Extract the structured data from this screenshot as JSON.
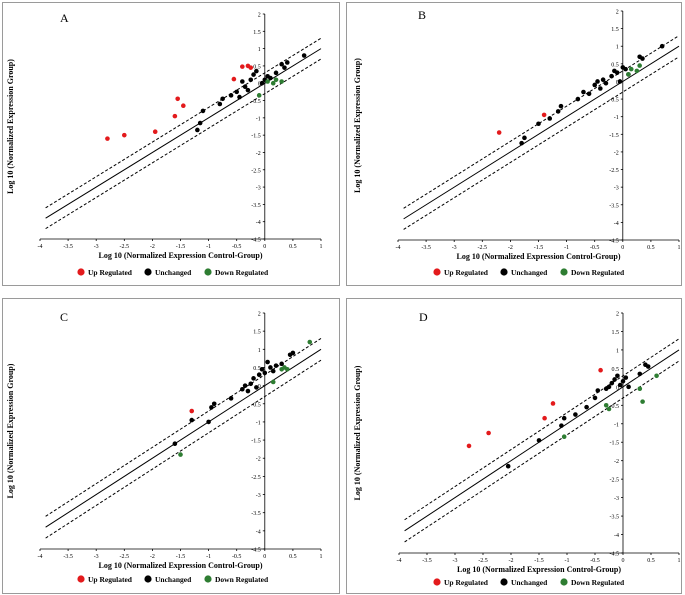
{
  "chart_data": [
    {
      "type": "scatter",
      "panel_label": "A",
      "xlabel": "Log 10 (Normalized Expression Control-Group)",
      "ylabel": "Log 10 (Normalized Expression Group)",
      "xlim": [
        -4,
        1
      ],
      "ylim": [
        -4.5,
        2
      ],
      "x_ticks": [
        "-4",
        "-3.5",
        "-3",
        "-2.5",
        "-2",
        "-1.5",
        "-1",
        "-0.5",
        "0",
        "0.5",
        "1"
      ],
      "y_ticks": [
        "2",
        "1.5",
        "1",
        "0.5",
        "0",
        "-0.5",
        "-1",
        "-1.5",
        "-2",
        "-2.5",
        "-3",
        "-3.5",
        "-4",
        "-4.5"
      ],
      "lines": [
        "y=x",
        "y=x+0.3",
        "y=x-0.3"
      ],
      "legend": [
        "Up Regulated",
        "Unchanged",
        "Down Regulated"
      ],
      "colors": {
        "up": "#e31a1c",
        "unchanged": "#000000",
        "down": "#2e7d32"
      },
      "series": [
        {
          "name": "Up Regulated",
          "points": [
            [
              -2.8,
              -1.6
            ],
            [
              -2.5,
              -1.5
            ],
            [
              -1.95,
              -1.4
            ],
            [
              -1.6,
              -0.95
            ],
            [
              -1.55,
              -0.45
            ],
            [
              -1.45,
              -0.65
            ],
            [
              -0.55,
              0.12
            ],
            [
              -0.4,
              0.48
            ],
            [
              -0.3,
              0.5
            ],
            [
              -0.25,
              0.45
            ]
          ]
        },
        {
          "name": "Unchanged",
          "points": [
            [
              -1.2,
              -1.35
            ],
            [
              -1.15,
              -1.15
            ],
            [
              -1.1,
              -0.8
            ],
            [
              -0.8,
              -0.6
            ],
            [
              -0.75,
              -0.45
            ],
            [
              -0.6,
              -0.35
            ],
            [
              -0.5,
              -0.25
            ],
            [
              -0.45,
              -0.4
            ],
            [
              -0.4,
              0.05
            ],
            [
              -0.35,
              -0.1
            ],
            [
              -0.3,
              -0.2
            ],
            [
              -0.25,
              0.1
            ],
            [
              -0.2,
              0.25
            ],
            [
              -0.15,
              0.35
            ],
            [
              -0.05,
              0.0
            ],
            [
              0.0,
              0.1
            ],
            [
              0.05,
              0.2
            ],
            [
              0.1,
              0.15
            ],
            [
              0.2,
              0.3
            ],
            [
              0.3,
              0.55
            ],
            [
              0.35,
              0.45
            ],
            [
              0.4,
              0.6
            ],
            [
              0.7,
              0.8
            ]
          ]
        },
        {
          "name": "Down Regulated",
          "points": [
            [
              -0.1,
              -0.35
            ],
            [
              0.05,
              0.05
            ],
            [
              0.15,
              0.0
            ],
            [
              0.2,
              0.1
            ],
            [
              0.3,
              0.05
            ]
          ]
        }
      ]
    },
    {
      "type": "scatter",
      "panel_label": "B",
      "xlabel": "Log 10 (Normalized Expression Control-Group)",
      "ylabel": "Log 10 (Normalized Expression Group)",
      "xlim": [
        -4,
        1
      ],
      "ylim": [
        -4.5,
        2
      ],
      "x_ticks": [
        "-4",
        "-3.5",
        "-3",
        "-2.5",
        "-2",
        "-1.5",
        "-1",
        "-0.5",
        "0",
        "0.5",
        "1"
      ],
      "y_ticks": [
        "2",
        "1.5",
        "1",
        "0.5",
        "0",
        "-0.5",
        "-1",
        "-1.5",
        "-2",
        "-2.5",
        "-3",
        "-3.5",
        "-4",
        "-4.5"
      ],
      "lines": [
        "y=x",
        "y=x+0.3",
        "y=x-0.3"
      ],
      "legend": [
        "Up Regulated",
        "Unchanged",
        "Down Regulated"
      ],
      "colors": {
        "up": "#e31a1c",
        "unchanged": "#000000",
        "down": "#2e7d32"
      },
      "series": [
        {
          "name": "Up Regulated",
          "points": [
            [
              -2.2,
              -1.45
            ],
            [
              -1.4,
              -0.95
            ]
          ]
        },
        {
          "name": "Unchanged",
          "points": [
            [
              -1.8,
              -1.75
            ],
            [
              -1.75,
              -1.6
            ],
            [
              -1.5,
              -1.2
            ],
            [
              -1.3,
              -1.05
            ],
            [
              -1.15,
              -0.85
            ],
            [
              -1.1,
              -0.7
            ],
            [
              -0.8,
              -0.5
            ],
            [
              -0.7,
              -0.3
            ],
            [
              -0.6,
              -0.35
            ],
            [
              -0.5,
              -0.1
            ],
            [
              -0.45,
              0.0
            ],
            [
              -0.4,
              -0.2
            ],
            [
              -0.35,
              0.05
            ],
            [
              -0.3,
              -0.05
            ],
            [
              -0.2,
              0.15
            ],
            [
              -0.15,
              0.3
            ],
            [
              -0.1,
              0.25
            ],
            [
              -0.05,
              0.0
            ],
            [
              0.0,
              0.4
            ],
            [
              0.05,
              0.35
            ],
            [
              0.1,
              0.2
            ],
            [
              0.3,
              0.7
            ],
            [
              0.35,
              0.65
            ],
            [
              0.7,
              1.0
            ]
          ]
        },
        {
          "name": "Down Regulated",
          "points": [
            [
              0.1,
              0.2
            ],
            [
              0.15,
              0.35
            ],
            [
              0.25,
              0.3
            ],
            [
              0.3,
              0.45
            ]
          ]
        }
      ]
    },
    {
      "type": "scatter",
      "panel_label": "C",
      "xlabel": "Log 10 (Normalized Expression Control-Group)",
      "ylabel": "Log 10 (Normalized Expression Group)",
      "xlim": [
        -4,
        1
      ],
      "ylim": [
        -4.5,
        2
      ],
      "x_ticks": [
        "-4",
        "-3.5",
        "-3",
        "-2.5",
        "-2",
        "-1.5",
        "-1",
        "-0.5",
        "0",
        "0.5",
        "1"
      ],
      "y_ticks": [
        "2",
        "1.5",
        "1",
        "0.5",
        "0",
        "-0.5",
        "-1",
        "-1.5",
        "-2",
        "-2.5",
        "-3",
        "-3.5",
        "-4",
        "-4.5"
      ],
      "lines": [
        "y=x",
        "y=x+0.3",
        "y=x-0.3"
      ],
      "legend": [
        "Up Regulated",
        "Unchanged",
        "Down Regulated"
      ],
      "colors": {
        "up": "#e31a1c",
        "unchanged": "#000000",
        "down": "#2e7d32"
      },
      "series": [
        {
          "name": "Up Regulated",
          "points": [
            [
              -1.3,
              -0.7
            ]
          ]
        },
        {
          "name": "Unchanged",
          "points": [
            [
              -1.6,
              -1.6
            ],
            [
              -1.3,
              -0.95
            ],
            [
              -1.0,
              -1.0
            ],
            [
              -0.95,
              -0.6
            ],
            [
              -0.9,
              -0.5
            ],
            [
              -0.6,
              -0.35
            ],
            [
              -0.4,
              -0.1
            ],
            [
              -0.35,
              0.0
            ],
            [
              -0.3,
              -0.15
            ],
            [
              -0.25,
              0.05
            ],
            [
              -0.2,
              0.2
            ],
            [
              -0.15,
              -0.05
            ],
            [
              -0.1,
              0.3
            ],
            [
              -0.05,
              0.45
            ],
            [
              0.0,
              0.35
            ],
            [
              0.05,
              0.65
            ],
            [
              0.1,
              0.5
            ],
            [
              0.15,
              0.4
            ],
            [
              0.2,
              0.55
            ],
            [
              0.3,
              0.6
            ],
            [
              0.45,
              0.85
            ],
            [
              0.5,
              0.9
            ]
          ]
        },
        {
          "name": "Down Regulated",
          "points": [
            [
              -1.5,
              -1.9
            ],
            [
              0.15,
              0.1
            ],
            [
              0.3,
              0.45
            ],
            [
              0.35,
              0.5
            ],
            [
              0.4,
              0.45
            ],
            [
              0.8,
              1.2
            ]
          ]
        }
      ]
    },
    {
      "type": "scatter",
      "panel_label": "D",
      "xlabel": "Log 10 (Normalized Expression Control-Group)",
      "ylabel": "Log 10 (Normalized Expression Group)",
      "xlim": [
        -4,
        1
      ],
      "ylim": [
        -4.5,
        2
      ],
      "x_ticks": [
        "-4",
        "-3.5",
        "-3",
        "-2.5",
        "-2",
        "-1.5",
        "-1",
        "-0.5",
        "0",
        "0.5",
        "1"
      ],
      "y_ticks": [
        "2",
        "1.5",
        "1",
        "0.5",
        "0",
        "-0.5",
        "-1",
        "-1.5",
        "-2",
        "-2.5",
        "-3",
        "-3.5",
        "-4",
        "-4.5"
      ],
      "lines": [
        "y=x",
        "y=x+0.3",
        "y=x-0.3"
      ],
      "legend": [
        "Up Regulated",
        "Unchanged",
        "Down Regulated"
      ],
      "colors": {
        "up": "#e31a1c",
        "unchanged": "#000000",
        "down": "#2e7d32"
      },
      "series": [
        {
          "name": "Up Regulated",
          "points": [
            [
              -2.75,
              -1.6
            ],
            [
              -2.4,
              -1.25
            ],
            [
              -1.4,
              -0.85
            ],
            [
              -1.25,
              -0.45
            ],
            [
              -0.4,
              0.45
            ]
          ]
        },
        {
          "name": "Unchanged",
          "points": [
            [
              -2.05,
              -2.15
            ],
            [
              -1.5,
              -1.45
            ],
            [
              -1.1,
              -1.05
            ],
            [
              -1.05,
              -0.85
            ],
            [
              -0.85,
              -0.75
            ],
            [
              -0.65,
              -0.55
            ],
            [
              -0.5,
              -0.3
            ],
            [
              -0.45,
              -0.1
            ],
            [
              -0.3,
              -0.05
            ],
            [
              -0.25,
              0.0
            ],
            [
              -0.2,
              0.1
            ],
            [
              -0.15,
              0.2
            ],
            [
              -0.1,
              0.3
            ],
            [
              -0.05,
              0.05
            ],
            [
              0.0,
              0.15
            ],
            [
              0.05,
              0.25
            ],
            [
              0.1,
              0.0
            ],
            [
              0.3,
              0.35
            ],
            [
              0.4,
              0.6
            ],
            [
              0.45,
              0.55
            ]
          ]
        },
        {
          "name": "Down Regulated",
          "points": [
            [
              -1.05,
              -1.35
            ],
            [
              -0.3,
              -0.5
            ],
            [
              -0.25,
              -0.6
            ],
            [
              0.3,
              -0.05
            ],
            [
              0.35,
              -0.4
            ],
            [
              0.6,
              0.3
            ]
          ]
        }
      ]
    }
  ]
}
